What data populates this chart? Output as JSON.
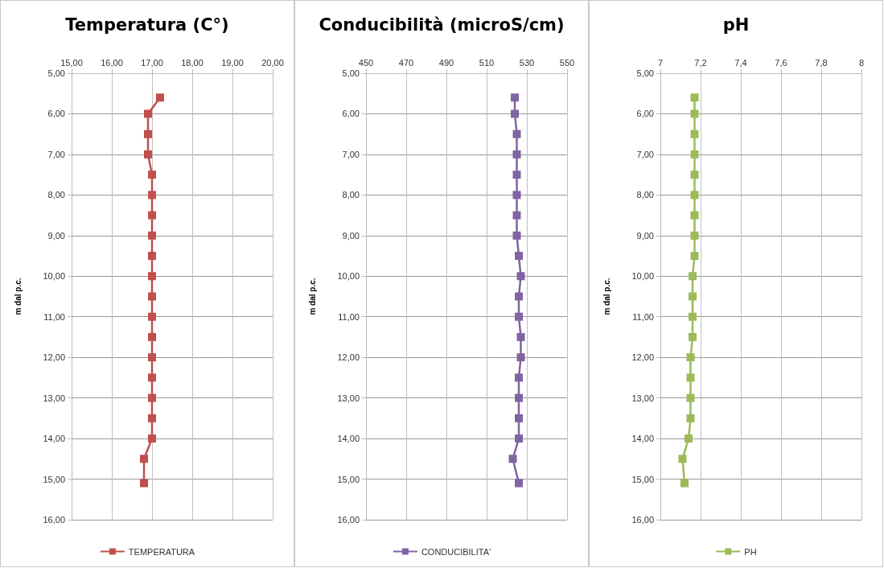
{
  "chart_data": [
    {
      "type": "line",
      "title": "Temperatura (C°)",
      "ylabel": "m dal p.c.",
      "marker": "square",
      "line_style": "solid",
      "grid": true,
      "legend": "bottom",
      "xlim": [
        15,
        20
      ],
      "xticks": [
        {
          "value": 15,
          "label": "15,00"
        },
        {
          "value": 16,
          "label": "16,00"
        },
        {
          "value": 17,
          "label": "17,00"
        },
        {
          "value": 18,
          "label": "18,00"
        },
        {
          "value": 19,
          "label": "19,00"
        },
        {
          "value": 20,
          "label": "20,00"
        }
      ],
      "ylim": [
        16,
        5
      ],
      "yticks": [
        {
          "value": 5,
          "label": "5,00"
        },
        {
          "value": 6,
          "label": "6,00"
        },
        {
          "value": 7,
          "label": "7,00"
        },
        {
          "value": 8,
          "label": "8,00"
        },
        {
          "value": 9,
          "label": "9,00"
        },
        {
          "value": 10,
          "label": "10,00"
        },
        {
          "value": 11,
          "label": "11,00"
        },
        {
          "value": 12,
          "label": "12,00"
        },
        {
          "value": 13,
          "label": "13,00"
        },
        {
          "value": 14,
          "label": "14,00"
        },
        {
          "value": 15,
          "label": "15,00"
        },
        {
          "value": 16,
          "label": "16,00"
        }
      ],
      "series": [
        {
          "name": "TEMPERATURA",
          "color": "#c0504d",
          "x": [
            17.2,
            16.9,
            16.9,
            16.9,
            17.0,
            17.0,
            17.0,
            17.0,
            17.0,
            17.0,
            17.0,
            17.0,
            17.0,
            17.0,
            17.0,
            17.0,
            17.0,
            17.0,
            16.8,
            16.8
          ],
          "values": [
            5.6,
            6.0,
            6.5,
            7.0,
            7.5,
            8.0,
            8.5,
            9.0,
            9.5,
            10.0,
            10.5,
            11.0,
            11.5,
            12.0,
            12.5,
            13.0,
            13.5,
            14.0,
            14.5,
            15.1
          ]
        }
      ]
    },
    {
      "type": "line",
      "title": "Conducibilità (microS/cm)",
      "ylabel": "m dal p.c.",
      "marker": "square",
      "line_style": "solid",
      "grid": true,
      "legend": "bottom",
      "xlim": [
        450,
        550
      ],
      "xticks": [
        450,
        470,
        490,
        510,
        530,
        550
      ],
      "ylim": [
        16,
        5
      ],
      "yticks": [
        {
          "value": 5,
          "label": "5,00"
        },
        {
          "value": 6,
          "label": "6,00"
        },
        {
          "value": 7,
          "label": "7,00"
        },
        {
          "value": 8,
          "label": "8,00"
        },
        {
          "value": 9,
          "label": "9,00"
        },
        {
          "value": 10,
          "label": "10,00"
        },
        {
          "value": 11,
          "label": "11,00"
        },
        {
          "value": 12,
          "label": "12,00"
        },
        {
          "value": 13,
          "label": "13,00"
        },
        {
          "value": 14,
          "label": "14,00"
        },
        {
          "value": 15,
          "label": "15,00"
        },
        {
          "value": 16,
          "label": "16,00"
        }
      ],
      "series": [
        {
          "name": "CONDUCIBILITA'",
          "color": "#8064a2",
          "x": [
            524,
            524,
            525,
            525,
            525,
            525,
            525,
            525,
            526,
            527,
            526,
            526,
            527,
            527,
            526,
            526,
            526,
            526,
            523,
            526
          ],
          "values": [
            5.6,
            6.0,
            6.5,
            7.0,
            7.5,
            8.0,
            8.5,
            9.0,
            9.5,
            10.0,
            10.5,
            11.0,
            11.5,
            12.0,
            12.5,
            13.0,
            13.5,
            14.0,
            14.5,
            15.1
          ]
        }
      ]
    },
    {
      "type": "line",
      "title": "pH",
      "ylabel": "m dal p.c.",
      "marker": "square",
      "line_style": "solid",
      "grid": true,
      "legend": "bottom",
      "xlim": [
        7,
        8
      ],
      "xticks": [
        7,
        {
          "value": 7.2,
          "label": "7,2"
        },
        {
          "value": 7.4,
          "label": "7,4"
        },
        {
          "value": 7.6,
          "label": "7,6"
        },
        {
          "value": 7.8,
          "label": "7,8"
        },
        8
      ],
      "ylim": [
        16,
        5
      ],
      "yticks": [
        {
          "value": 5,
          "label": "5,00"
        },
        {
          "value": 6,
          "label": "6,00"
        },
        {
          "value": 7,
          "label": "7,00"
        },
        {
          "value": 8,
          "label": "8,00"
        },
        {
          "value": 9,
          "label": "9,00"
        },
        {
          "value": 10,
          "label": "10,00"
        },
        {
          "value": 11,
          "label": "11,00"
        },
        {
          "value": 12,
          "label": "12,00"
        },
        {
          "value": 13,
          "label": "13,00"
        },
        {
          "value": 14,
          "label": "14,00"
        },
        {
          "value": 15,
          "label": "15,00"
        },
        {
          "value": 16,
          "label": "16,00"
        }
      ],
      "series": [
        {
          "name": "PH",
          "color": "#9bbb59",
          "x": [
            7.17,
            7.17,
            7.17,
            7.17,
            7.17,
            7.17,
            7.17,
            7.17,
            7.17,
            7.16,
            7.16,
            7.16,
            7.16,
            7.15,
            7.15,
            7.15,
            7.15,
            7.14,
            7.11,
            7.12
          ],
          "values": [
            5.6,
            6.0,
            6.5,
            7.0,
            7.5,
            8.0,
            8.5,
            9.0,
            9.5,
            10.0,
            10.5,
            11.0,
            11.5,
            12.0,
            12.5,
            13.0,
            13.5,
            14.0,
            14.5,
            15.1
          ]
        }
      ]
    }
  ]
}
